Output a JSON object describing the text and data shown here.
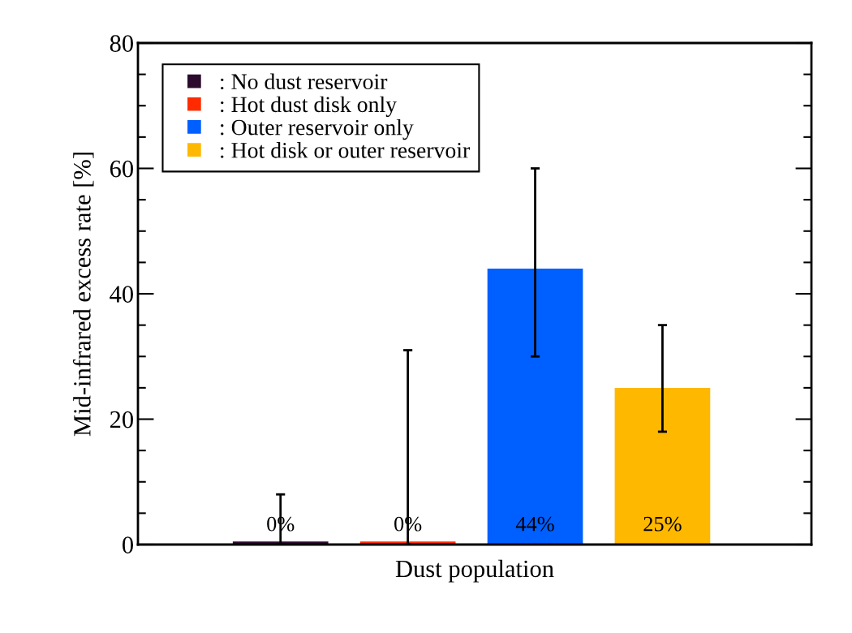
{
  "chart_data": {
    "type": "bar",
    "xlabel": "Dust population",
    "ylabel": "Mid-infrared excess rate [%]",
    "categories": [
      null,
      null,
      null,
      null
    ],
    "series": [
      {
        "name": ": No dust reservoir",
        "color": "#2b0a2e",
        "values": [
          0.5,
          null,
          null,
          null
        ],
        "errors": [
          [
            0,
            8
          ],
          null,
          null,
          null
        ],
        "value_labels": [
          "0%",
          null,
          null,
          null
        ]
      },
      {
        "name": ": Hot dust disk only",
        "color": "#ff2a00",
        "values": [
          null,
          0.5,
          null,
          null
        ],
        "errors": [
          null,
          [
            0,
            31
          ],
          null,
          null
        ],
        "value_labels": [
          null,
          "0%",
          null,
          null
        ]
      },
      {
        "name": ": Outer reservoir only",
        "color": "#005fff",
        "values": [
          null,
          null,
          44,
          null
        ],
        "errors": [
          null,
          null,
          [
            30,
            60
          ],
          null
        ],
        "value_labels": [
          null,
          null,
          "44%",
          null
        ]
      },
      {
        "name": ": Hot disk or outer reservoir",
        "color": "#ffb800",
        "values": [
          null,
          null,
          null,
          25
        ],
        "errors": [
          null,
          null,
          null,
          [
            18,
            35
          ]
        ],
        "value_labels": [
          null,
          null,
          null,
          "25%"
        ]
      }
    ],
    "ylim": [
      0,
      80
    ],
    "yticks": [
      0,
      20,
      40,
      60,
      80
    ],
    "grid": false,
    "legend": "top left"
  }
}
